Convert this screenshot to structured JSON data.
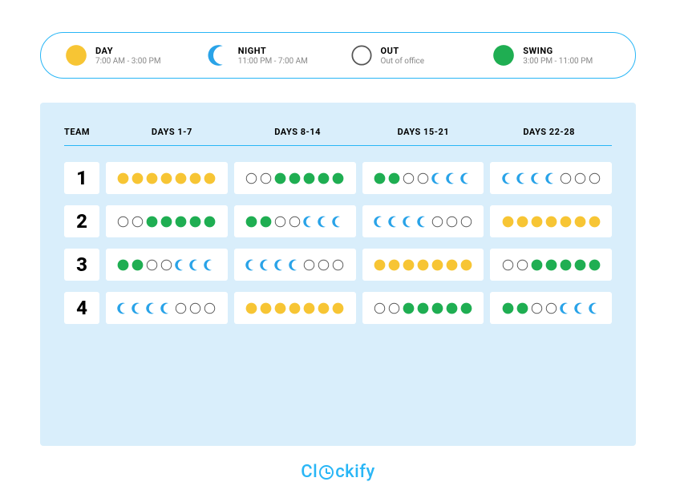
{
  "colors": {
    "day": "#f7c534",
    "night": "#29a3e8",
    "out_border": "#555555",
    "swing": "#1fae52",
    "accent": "#29b6f6",
    "panel_bg": "#d9eefb"
  },
  "legend": [
    {
      "key": "day",
      "title": "DAY",
      "sub": "7:00 AM - 3:00 PM"
    },
    {
      "key": "night",
      "title": "NIGHT",
      "sub": "11:00 PM - 7:00 AM"
    },
    {
      "key": "out",
      "title": "OUT",
      "sub": "Out of office"
    },
    {
      "key": "swing",
      "title": "SWING",
      "sub": "3:00 PM - 11:00 PM"
    }
  ],
  "headers": {
    "team": "TEAM",
    "cols": [
      "DAYS 1-7",
      "DAYS 8-14",
      "DAYS 15-21",
      "DAYS 22-28"
    ]
  },
  "teams": [
    {
      "num": "1",
      "weeks": [
        [
          "day",
          "day",
          "day",
          "day",
          "day",
          "day",
          "day"
        ],
        [
          "out",
          "out",
          "swing",
          "swing",
          "swing",
          "swing",
          "swing"
        ],
        [
          "swing",
          "swing",
          "out",
          "out",
          "night",
          "night",
          "night"
        ],
        [
          "night",
          "night",
          "night",
          "night",
          "out",
          "out",
          "out"
        ]
      ]
    },
    {
      "num": "2",
      "weeks": [
        [
          "out",
          "out",
          "swing",
          "swing",
          "swing",
          "swing",
          "swing"
        ],
        [
          "swing",
          "swing",
          "out",
          "out",
          "night",
          "night",
          "night"
        ],
        [
          "night",
          "night",
          "night",
          "night",
          "out",
          "out",
          "out"
        ],
        [
          "day",
          "day",
          "day",
          "day",
          "day",
          "day",
          "day"
        ]
      ]
    },
    {
      "num": "3",
      "weeks": [
        [
          "swing",
          "swing",
          "out",
          "out",
          "night",
          "night",
          "night"
        ],
        [
          "night",
          "night",
          "night",
          "night",
          "out",
          "out",
          "out"
        ],
        [
          "day",
          "day",
          "day",
          "day",
          "day",
          "day",
          "day"
        ],
        [
          "out",
          "out",
          "swing",
          "swing",
          "swing",
          "swing",
          "swing"
        ]
      ]
    },
    {
      "num": "4",
      "weeks": [
        [
          "night",
          "night",
          "night",
          "night",
          "out",
          "out",
          "out"
        ],
        [
          "day",
          "day",
          "day",
          "day",
          "day",
          "day",
          "day"
        ],
        [
          "out",
          "out",
          "swing",
          "swing",
          "swing",
          "swing",
          "swing"
        ],
        [
          "swing",
          "swing",
          "out",
          "out",
          "night",
          "night",
          "night"
        ]
      ]
    }
  ],
  "footer": {
    "brand_pre": "Cl",
    "brand_post": "ckify"
  },
  "icon_sizes": {
    "legend": 28,
    "dot": 15
  }
}
